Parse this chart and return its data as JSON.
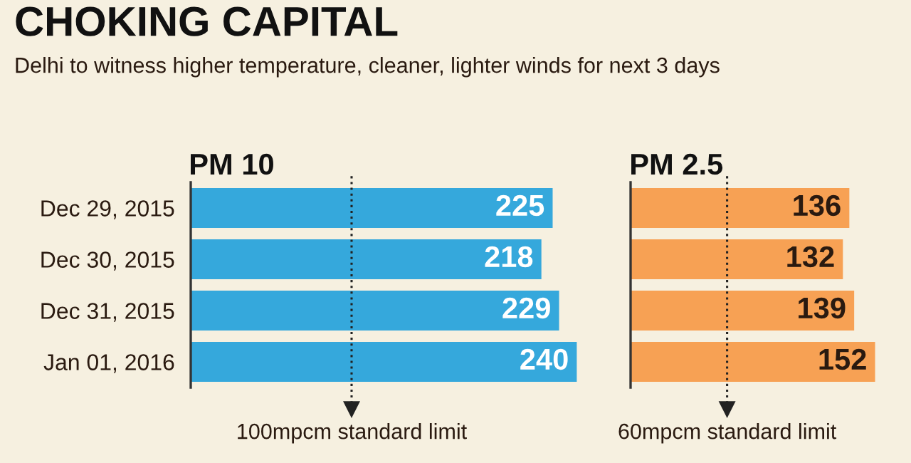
{
  "chart_data": [
    {
      "type": "bar",
      "orientation": "horizontal",
      "title": "PM 10",
      "annotations": [
        "CHOKING CAPITAL",
        "Delhi to witness higher temperature, cleaner, lighter winds for next 3 days"
      ],
      "categories": [
        "Dec 29, 2015",
        "Dec 30, 2015",
        "Dec 31, 2015",
        "Jan 01, 2016"
      ],
      "values": [
        225,
        218,
        229,
        240
      ],
      "color": "#35a8dc",
      "data_labels": true,
      "tick_labels": "y",
      "grid": false,
      "ref_lines": [
        {
          "axis": "x",
          "value": 100,
          "label": "100mpcm standard limit",
          "line_style": "dotted",
          "color": "#222222"
        }
      ]
    },
    {
      "type": "bar",
      "orientation": "horizontal",
      "title": "PM 2.5",
      "categories": [
        null,
        null,
        null,
        null
      ],
      "values": [
        136,
        132,
        139,
        152
      ],
      "color": "#f7a154",
      "data_labels": true,
      "tick_labels": false,
      "grid": false,
      "ref_lines": [
        {
          "axis": "x",
          "value": 60,
          "label": "60mpcm standard limit",
          "line_style": "dotted",
          "color": "#222222"
        }
      ]
    }
  ]
}
